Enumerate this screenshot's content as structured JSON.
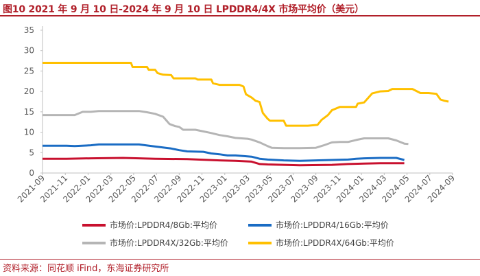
{
  "header": {
    "title": "图10  2021 年 9 月 10 日-2024 年 9 月 10 日 LPDDR4/4X 市场平均价（美元）"
  },
  "footer": {
    "source": "资料来源：同花顺 iFind，东海证券研究所"
  },
  "chart_data": {
    "type": "line",
    "title": "2021 年 9 月 10 日-2024 年 9 月 10 日 LPDDR4/4X 市场平均价（美元）",
    "ylim": [
      0,
      35
    ],
    "yticks": [
      0,
      5,
      10,
      15,
      20,
      25,
      30,
      35
    ],
    "x_start": "2021-09",
    "x_end": "2024-09",
    "xtick_labels": [
      "2021-09",
      "2021-11",
      "2022-01",
      "2022-03",
      "2022-05",
      "2022-07",
      "2022-09",
      "2022-11",
      "2023-01",
      "2023-03",
      "2023-05",
      "2023-07",
      "2023-09",
      "2023-11",
      "2024-01",
      "2024-03",
      "2024-05",
      "2024-07",
      "2024-09"
    ],
    "series": [
      {
        "name": "市场价:LPDDR4/8Gb:平均价",
        "color": "#c8102e",
        "points": [
          [
            0,
            3.5
          ],
          [
            3,
            3.5
          ],
          [
            6,
            3.6
          ],
          [
            10,
            3.7
          ],
          [
            12,
            3.6
          ],
          [
            14,
            3.5
          ],
          [
            18,
            3.4
          ],
          [
            22,
            3.1
          ],
          [
            24,
            3.0
          ],
          [
            26,
            2.8
          ],
          [
            27,
            2.2
          ],
          [
            28,
            2.1
          ],
          [
            30,
            2.0
          ],
          [
            32,
            1.9
          ],
          [
            36,
            2.0
          ],
          [
            38,
            2.2
          ],
          [
            40,
            2.3
          ],
          [
            42,
            2.4
          ],
          [
            45,
            2.4
          ]
        ]
      },
      {
        "name": "市场价:LPDDR4/16Gb:平均价",
        "color": "#1a6cc4",
        "points": [
          [
            0,
            6.7
          ],
          [
            3,
            6.7
          ],
          [
            4,
            6.6
          ],
          [
            6,
            6.8
          ],
          [
            7,
            7.0
          ],
          [
            12,
            7.0
          ],
          [
            14,
            6.5
          ],
          [
            16,
            6.0
          ],
          [
            17,
            5.6
          ],
          [
            18,
            5.3
          ],
          [
            20,
            5.2
          ],
          [
            21,
            4.8
          ],
          [
            22,
            4.6
          ],
          [
            23,
            4.3
          ],
          [
            24,
            4.3
          ],
          [
            26,
            4.0
          ],
          [
            27,
            3.5
          ],
          [
            28,
            3.3
          ],
          [
            30,
            3.1
          ],
          [
            32,
            3.0
          ],
          [
            34,
            3.1
          ],
          [
            36,
            3.2
          ],
          [
            38,
            3.3
          ],
          [
            39,
            3.5
          ],
          [
            40,
            3.6
          ],
          [
            42,
            3.7
          ],
          [
            44,
            3.7
          ],
          [
            45,
            3.2
          ]
        ]
      },
      {
        "name": "市场价:LPDDR4X/32Gb:平均价",
        "color": "#b5b5b5",
        "points": [
          [
            0,
            14.2
          ],
          [
            4,
            14.2
          ],
          [
            5,
            15.0
          ],
          [
            6,
            15.0
          ],
          [
            7,
            15.2
          ],
          [
            12,
            15.2
          ],
          [
            13,
            14.9
          ],
          [
            14,
            14.5
          ],
          [
            15,
            13.8
          ],
          [
            15.8,
            12.0
          ],
          [
            16.5,
            11.5
          ],
          [
            17,
            11.3
          ],
          [
            17.5,
            10.6
          ],
          [
            19,
            10.6
          ],
          [
            20,
            10.2
          ],
          [
            21,
            9.8
          ],
          [
            22,
            9.3
          ],
          [
            23,
            9.0
          ],
          [
            24,
            8.6
          ],
          [
            25.5,
            8.4
          ],
          [
            26,
            8.2
          ],
          [
            27,
            7.5
          ],
          [
            28,
            6.6
          ],
          [
            28.5,
            6.2
          ],
          [
            30,
            6.1
          ],
          [
            32,
            6.1
          ],
          [
            34,
            6.2
          ],
          [
            35,
            6.8
          ],
          [
            36,
            7.5
          ],
          [
            37,
            7.6
          ],
          [
            38,
            7.6
          ],
          [
            39,
            8.1
          ],
          [
            40,
            8.5
          ],
          [
            41,
            8.5
          ],
          [
            43,
            8.5
          ],
          [
            44,
            8.0
          ],
          [
            45,
            7.2
          ],
          [
            45.5,
            7.1
          ]
        ]
      },
      {
        "name": "市场价:LPDDR4X/64Gb:平均价",
        "color": "#ffc000",
        "points": [
          [
            0,
            27.0
          ],
          [
            6,
            27.0
          ],
          [
            10,
            27.0
          ],
          [
            11,
            27.0
          ],
          [
            11.2,
            26.0
          ],
          [
            13,
            26.0
          ],
          [
            13.2,
            25.3
          ],
          [
            14,
            25.3
          ],
          [
            14.3,
            24.5
          ],
          [
            15,
            24.1
          ],
          [
            16,
            24.0
          ],
          [
            16.3,
            23.2
          ],
          [
            19,
            23.2
          ],
          [
            19.3,
            22.9
          ],
          [
            20,
            22.9
          ],
          [
            21,
            22.9
          ],
          [
            21.2,
            22.0
          ],
          [
            22,
            21.6
          ],
          [
            24.5,
            21.6
          ],
          [
            25,
            21.2
          ],
          [
            25.3,
            19.3
          ],
          [
            26,
            18.5
          ],
          [
            26.5,
            17.7
          ],
          [
            27,
            17.4
          ],
          [
            27.4,
            14.7
          ],
          [
            28,
            13.3
          ],
          [
            28.3,
            12.8
          ],
          [
            30,
            12.8
          ],
          [
            30.3,
            11.6
          ],
          [
            32,
            11.6
          ],
          [
            33,
            11.6
          ],
          [
            34.2,
            11.8
          ],
          [
            34.7,
            13.0
          ],
          [
            35.5,
            14.2
          ],
          [
            36,
            15.4
          ],
          [
            37,
            16.2
          ],
          [
            39,
            16.2
          ],
          [
            39.2,
            17.0
          ],
          [
            40,
            17.3
          ],
          [
            41,
            19.5
          ],
          [
            42,
            20.0
          ],
          [
            43,
            20.1
          ],
          [
            43.5,
            20.6
          ],
          [
            44,
            20.6
          ],
          [
            46,
            20.6
          ],
          [
            47,
            19.6
          ],
          [
            48,
            19.6
          ],
          [
            49,
            19.4
          ],
          [
            49.5,
            18.0
          ],
          [
            50,
            17.7
          ],
          [
            50.5,
            17.5
          ]
        ]
      }
    ]
  }
}
